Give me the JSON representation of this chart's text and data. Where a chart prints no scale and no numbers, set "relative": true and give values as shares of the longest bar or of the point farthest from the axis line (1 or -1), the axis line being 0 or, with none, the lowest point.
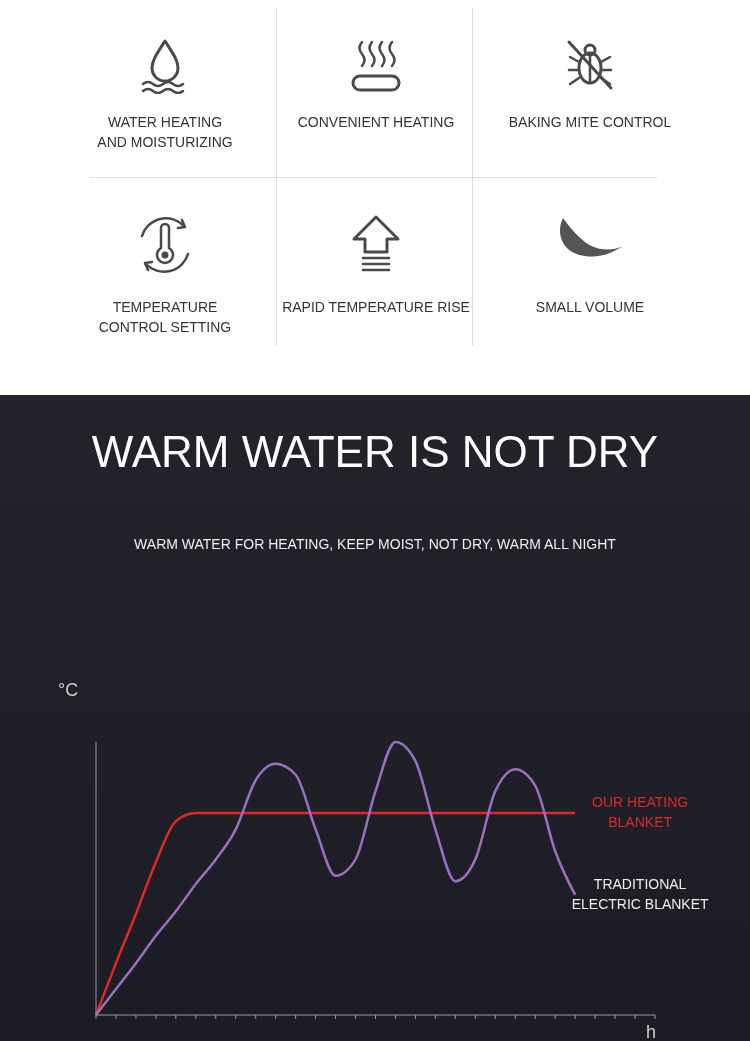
{
  "chart_data": {
    "type": "line",
    "title": "WARM WATER IS NOT DRY",
    "subtitle": "WARM WATER FOR HEATING, KEEP MOIST, NOT DRY, WARM ALL NIGHT",
    "annotations": [
      "WATER HEATING\nAND MOISTURIZING",
      "CONVENIENT HEATING",
      "BAKING MITE CONTROL",
      "TEMPERATURE\nCONTROL SETTING",
      "RAPID TEMPERATURE RISE",
      "SMALL VOLUME"
    ],
    "xlabel": "h",
    "ylabel": "°C",
    "relative": true,
    "marker": "none",
    "categories": [
      null,
      null,
      null,
      null,
      null,
      null,
      null,
      null,
      null,
      null,
      null,
      null,
      null,
      null,
      null,
      null,
      null,
      null,
      null,
      null,
      null,
      null,
      null,
      null,
      null,
      null,
      null,
      null,
      null
    ],
    "series": [
      {
        "name": "OUR HEATING BLANKET",
        "color": "#e02828",
        "values": [
          0,
          0.19,
          0.37,
          0.56,
          0.71,
          0.74,
          0.74,
          0.74,
          0.74,
          0.74,
          0.74,
          0.74,
          0.74,
          0.74,
          0.74,
          0.74,
          0.74,
          0.74,
          0.74,
          0.74,
          0.74,
          0.74,
          0.74,
          0.74,
          0.74,
          null,
          null,
          null,
          null
        ]
      },
      {
        "name": "TRADITIONAL ELECTRIC BLANKET",
        "color": "#9b6fc0",
        "values": [
          0,
          0.095,
          0.19,
          0.29,
          0.38,
          0.48,
          0.57,
          0.68,
          0.86,
          0.92,
          0.88,
          0.68,
          0.51,
          0.57,
          0.82,
          1,
          0.93,
          0.68,
          0.49,
          0.57,
          0.82,
          0.9,
          0.84,
          0.6,
          0.44,
          null,
          null,
          null,
          null
        ]
      }
    ]
  }
}
